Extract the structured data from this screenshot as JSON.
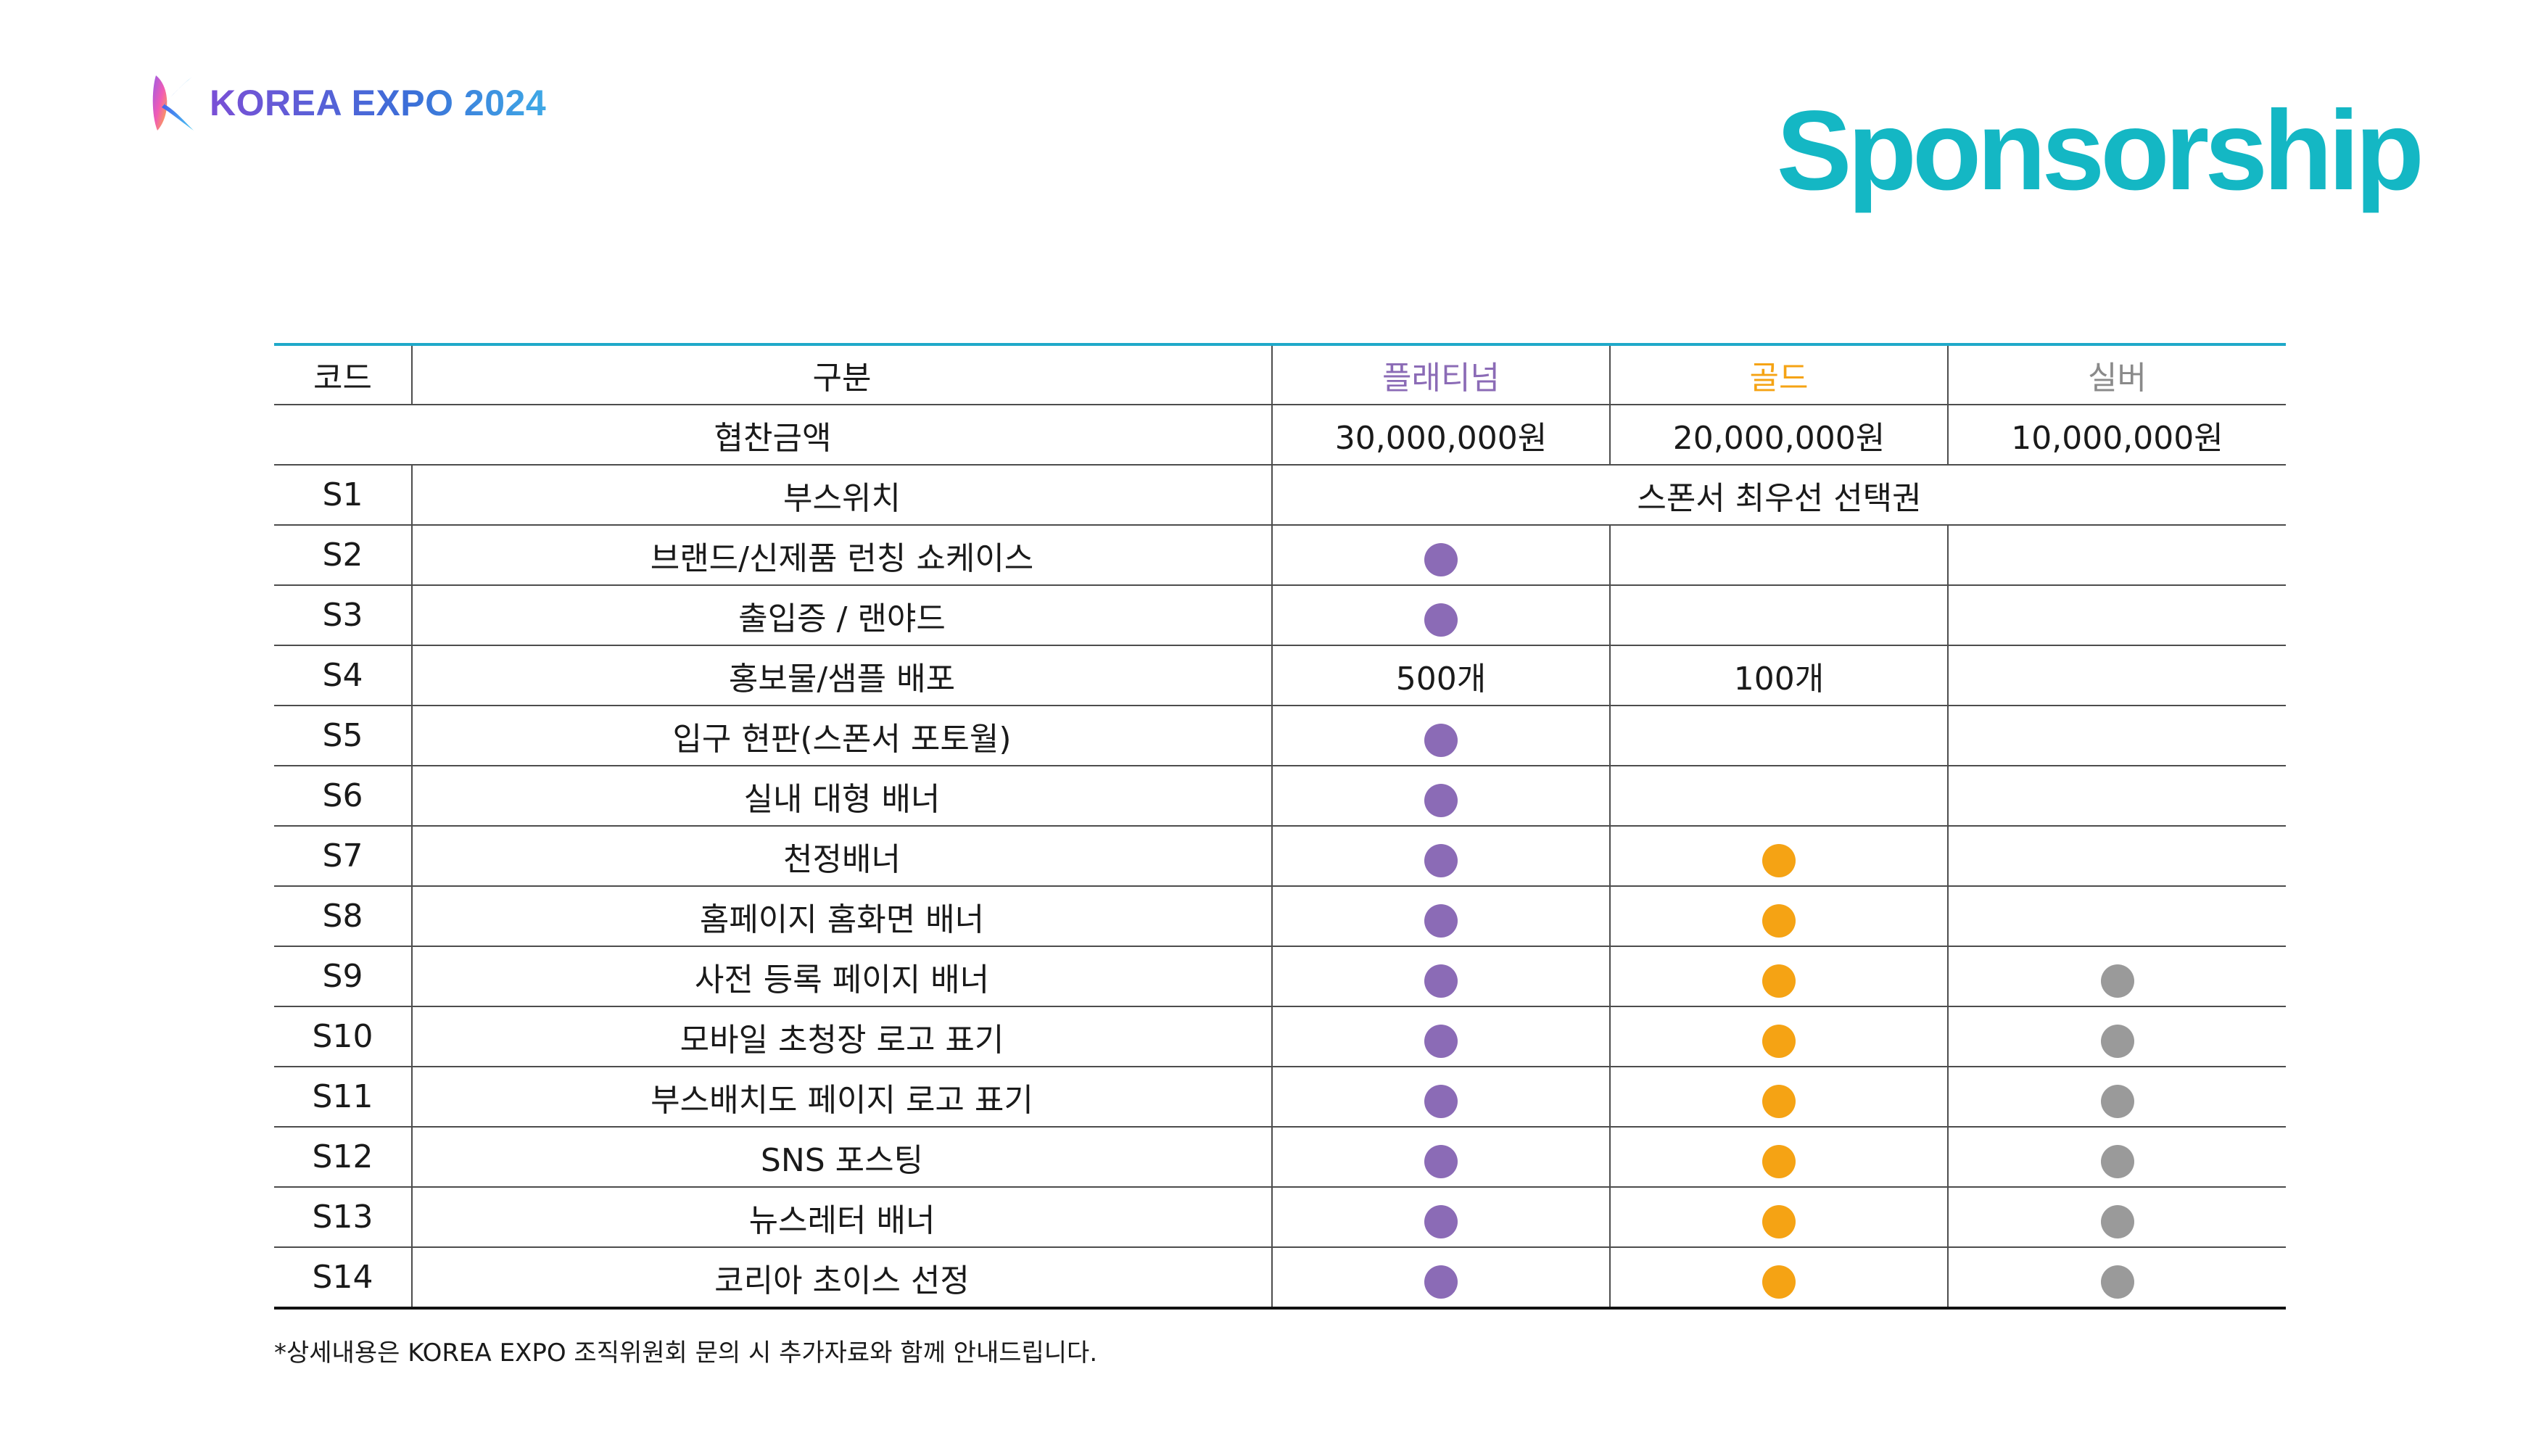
{
  "brand": {
    "logo_text": "KOREA EXPO 2024"
  },
  "page_title": "Sponsorship",
  "colors": {
    "platinum": "#8b6bb6",
    "gold": "#f5a314",
    "silver": "#9a9a9a",
    "title": "#14b7c4",
    "header_rule": "#1fa9c9"
  },
  "table": {
    "headers": {
      "code": "코드",
      "category": "구분",
      "platinum": "플래티넘",
      "gold": "골드",
      "silver": "실버"
    },
    "amount_row": {
      "label": "협찬금액",
      "platinum": "30,000,000원",
      "gold": "20,000,000원",
      "silver": "10,000,000원"
    },
    "rows": [
      {
        "code": "S1",
        "item": "부스위치",
        "span_text": "스폰서 최우선 선택권"
      },
      {
        "code": "S2",
        "item": "브랜드/신제품 런칭 쇼케이스",
        "platinum": true,
        "gold": false,
        "silver": false
      },
      {
        "code": "S3",
        "item": "출입증 / 랜야드",
        "platinum": true,
        "gold": false,
        "silver": false
      },
      {
        "code": "S4",
        "item": "홍보물/샘플 배포",
        "platinum_text": "500개",
        "gold_text": "100개",
        "silver": false
      },
      {
        "code": "S5",
        "item": "입구 현판(스폰서 포토월)",
        "platinum": true,
        "gold": false,
        "silver": false
      },
      {
        "code": "S6",
        "item": "실내 대형 배너",
        "platinum": true,
        "gold": false,
        "silver": false
      },
      {
        "code": "S7",
        "item": "천정배너",
        "platinum": true,
        "gold": true,
        "silver": false
      },
      {
        "code": "S8",
        "item": "홈페이지 홈화면 배너",
        "platinum": true,
        "gold": true,
        "silver": false
      },
      {
        "code": "S9",
        "item": "사전 등록 페이지 배너",
        "platinum": true,
        "gold": true,
        "silver": true
      },
      {
        "code": "S10",
        "item": "모바일 초청장 로고 표기",
        "platinum": true,
        "gold": true,
        "silver": true
      },
      {
        "code": "S11",
        "item": "부스배치도 페이지 로고 표기",
        "platinum": true,
        "gold": true,
        "silver": true
      },
      {
        "code": "S12",
        "item": "SNS 포스팅",
        "platinum": true,
        "gold": true,
        "silver": true
      },
      {
        "code": "S13",
        "item": "뉴스레터 배너",
        "platinum": true,
        "gold": true,
        "silver": true
      },
      {
        "code": "S14",
        "item": "코리아 초이스 선정",
        "platinum": true,
        "gold": true,
        "silver": true
      }
    ]
  },
  "footnote": "*상세내용은 KOREA EXPO 조직위원회 문의 시 추가자료와 함께 안내드립니다."
}
